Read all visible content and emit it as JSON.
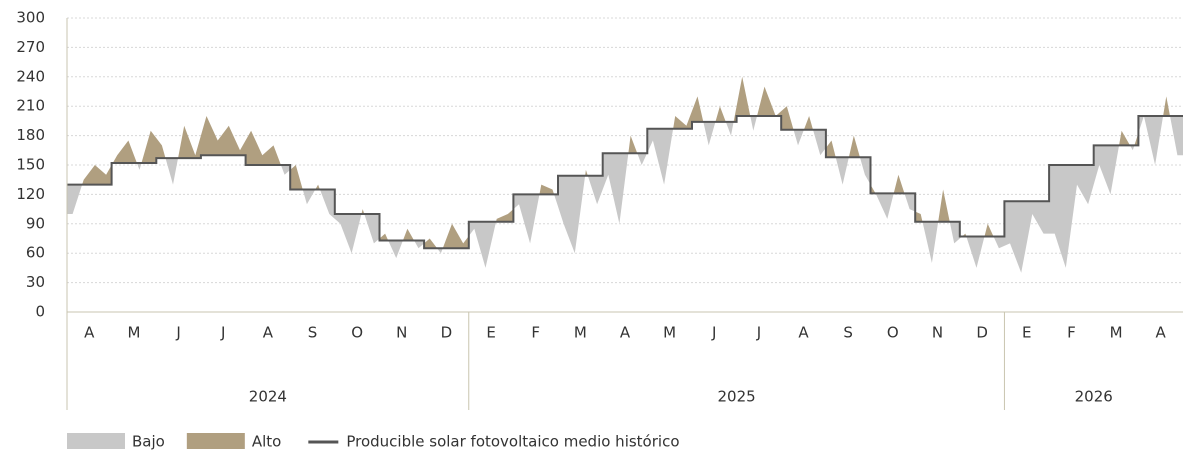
{
  "chart_data": {
    "type": "area",
    "ylim": [
      0,
      300
    ],
    "yticks": [
      0,
      30,
      60,
      90,
      120,
      150,
      180,
      210,
      240,
      270,
      300
    ],
    "grid": true,
    "years": [
      {
        "label": "2024",
        "months": [
          "A",
          "M",
          "J",
          "J",
          "A",
          "S",
          "O",
          "N",
          "D"
        ]
      },
      {
        "label": "2025",
        "months": [
          "E",
          "F",
          "M",
          "A",
          "M",
          "J",
          "J",
          "A",
          "S",
          "O",
          "N",
          "D"
        ]
      },
      {
        "label": "2026",
        "months": [
          "E",
          "F",
          "M",
          "A"
        ]
      }
    ],
    "values": [
      [
        100,
        135,
        150,
        140
      ],
      [
        160,
        175,
        145,
        185
      ],
      [
        170,
        130,
        190,
        160
      ],
      [
        200,
        175,
        190,
        165
      ],
      [
        185,
        160,
        170,
        140
      ],
      [
        150,
        110,
        130,
        100
      ],
      [
        90,
        60,
        105,
        70
      ],
      [
        80,
        55,
        85,
        65
      ],
      [
        75,
        60,
        90,
        70
      ],
      [
        85,
        45,
        95,
        100
      ],
      [
        110,
        70,
        130,
        125
      ],
      [
        90,
        60,
        145,
        110
      ],
      [
        140,
        90,
        180,
        150
      ],
      [
        175,
        130,
        200,
        190
      ],
      [
        220,
        170,
        210,
        180
      ],
      [
        240,
        185,
        230,
        200
      ],
      [
        210,
        170,
        200,
        160
      ],
      [
        175,
        130,
        180,
        140
      ],
      [
        120,
        95,
        140,
        105
      ],
      [
        100,
        50,
        125,
        70
      ],
      [
        80,
        45,
        90,
        65
      ],
      [
        70,
        40,
        100,
        80
      ],
      [
        80,
        45,
        130,
        110
      ],
      [
        150,
        120,
        185,
        165
      ],
      [
        200,
        150,
        220,
        160
      ]
    ],
    "fills": [
      {
        "name": "Bajo",
        "color": "#c8c8c8"
      },
      {
        "name": "Alto",
        "color": "#b09f80"
      }
    ],
    "series": [
      {
        "name": "Producible solar fotovoltaico medio histórico",
        "color": "#555555",
        "values": [
          130,
          152,
          157,
          160,
          150,
          125,
          100,
          73,
          65,
          92,
          120,
          139,
          162,
          187,
          194,
          200,
          186,
          158,
          121,
          92,
          77,
          113,
          150,
          170,
          200
        ]
      }
    ]
  }
}
